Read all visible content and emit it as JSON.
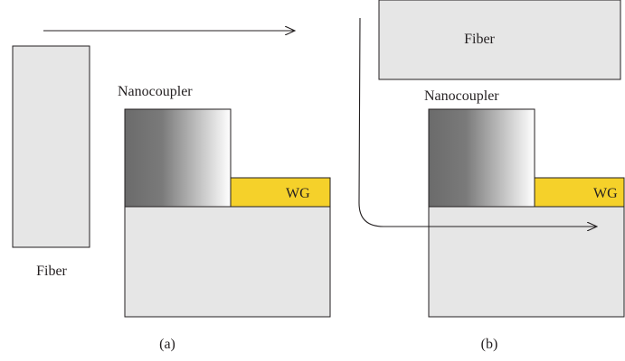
{
  "panel_a": {
    "fiber_label": "Fiber",
    "nanocoupler_label": "Nanocoupler",
    "waveguide_label": "WG",
    "caption": "(a)"
  },
  "panel_b": {
    "fiber_label": "Fiber",
    "nanocoupler_label": "Nanocoupler",
    "waveguide_label": "WG",
    "caption": "(b)"
  },
  "colors": {
    "fiber_fill": "#e6e6e6",
    "substrate_fill": "#e6e6e6",
    "waveguide_fill": "#f5d12a",
    "outline": "#231f20",
    "coupler_dark": "#6b6b6b",
    "coupler_light": "#ffffff"
  }
}
